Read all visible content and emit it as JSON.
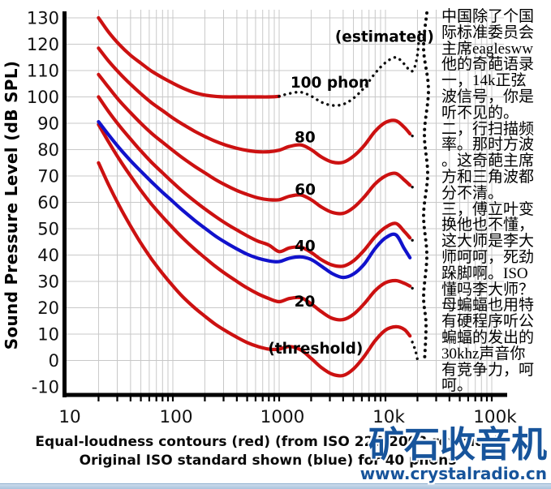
{
  "side_text": {
    "lines": [
      "中国除了个国",
      "际标准委员会",
      "主席eaglesww",
      "他的奇葩语录",
      "一，14k正弦",
      "波信号，你是",
      "听不见的。",
      "二，行扫描频",
      "率。那时方波",
      "。这奇葩主席",
      "方和三角波都",
      "分不清。",
      "三，傅立叶变",
      "换他也不懂，",
      "这大师是李大",
      "师呵呵，死劲",
      "跺脚啊。ISO",
      "懂吗李大师？",
      "母蝙蝠也用特",
      "有硬程序听公",
      "蝙蝠的发出的",
      "30khz声音你",
      "有竞争力，呵",
      "呵。"
    ]
  },
  "caption": {
    "line1": "Equal-loudness contours (red) (from ISO 226:2003 revision)",
    "line2": "Original ISO standard shown (blue) for 40 phons"
  },
  "watermark": {
    "brand": "矿石收音机",
    "url": "www.crystalradio.cn",
    "color": "#17549b"
  },
  "chart_data": {
    "type": "line",
    "title": "",
    "xlabel": "",
    "ylabel": "Sound Pressure Level (dB SPL)",
    "x_scale": "log",
    "xlim": [
      10,
      100000
    ],
    "ylim": [
      -10,
      130
    ],
    "grid": true,
    "colors": {
      "iso2003_red": "#cc1111",
      "original_blue": "#1112cc",
      "estimated_dotted": "#0d0d0d",
      "gridline": "#c8c8c8",
      "axis": "#000000"
    },
    "x_ticks": [
      {
        "f": 10,
        "label": "10"
      },
      {
        "f": 100,
        "label": "100"
      },
      {
        "f": 1000,
        "label": "1000"
      },
      {
        "f": 10000,
        "label": "10k"
      },
      {
        "f": 100000,
        "label": "100k"
      }
    ],
    "y_ticks": [
      130,
      120,
      110,
      100,
      90,
      80,
      70,
      60,
      50,
      40,
      30,
      20,
      10,
      0,
      -10
    ],
    "series": [
      {
        "name": "100-phon-solid",
        "color": "red",
        "style": "solid",
        "points": [
          [
            20,
            130
          ],
          [
            25,
            124.5
          ],
          [
            31.5,
            119.8
          ],
          [
            40,
            115.8
          ],
          [
            50,
            112.8
          ],
          [
            63,
            109.8
          ],
          [
            80,
            107.3
          ],
          [
            100,
            105.2
          ],
          [
            125,
            103.3
          ],
          [
            160,
            101.6
          ],
          [
            200,
            100.7
          ],
          [
            250,
            100.2
          ],
          [
            315,
            100
          ],
          [
            400,
            100
          ],
          [
            500,
            100
          ],
          [
            630,
            100
          ],
          [
            800,
            100
          ],
          [
            1000,
            100.2
          ]
        ]
      },
      {
        "name": "100-phon-estimated-dotted",
        "color": "black",
        "style": "dotted",
        "points": [
          [
            1000,
            100.2
          ],
          [
            1250,
            101.3
          ],
          [
            1600,
            101.8
          ],
          [
            2000,
            100.3
          ],
          [
            2500,
            98
          ],
          [
            3150,
            96.8
          ],
          [
            4000,
            97.2
          ],
          [
            5000,
            99.5
          ],
          [
            6300,
            103.5
          ],
          [
            8000,
            109
          ],
          [
            10000,
            113
          ],
          [
            12500,
            115
          ],
          [
            15000,
            112.5
          ],
          [
            17000,
            110
          ],
          [
            18500,
            110.5
          ],
          [
            20000,
            116
          ],
          [
            21000,
            126
          ]
        ]
      },
      {
        "name": "80-phon",
        "color": "red",
        "style": "solid",
        "points": [
          [
            20,
            118.5
          ],
          [
            25,
            113.5
          ],
          [
            31.5,
            109
          ],
          [
            40,
            104.8
          ],
          [
            50,
            101.2
          ],
          [
            63,
            97.8
          ],
          [
            80,
            94.8
          ],
          [
            100,
            92
          ],
          [
            125,
            89.5
          ],
          [
            160,
            87
          ],
          [
            200,
            85
          ],
          [
            250,
            83.2
          ],
          [
            315,
            81.7
          ],
          [
            400,
            80.5
          ],
          [
            500,
            79.7
          ],
          [
            630,
            79.2
          ],
          [
            800,
            79.2
          ],
          [
            1000,
            79.8
          ],
          [
            1250,
            81.2
          ],
          [
            1600,
            81.8
          ],
          [
            2000,
            80
          ],
          [
            2500,
            77.2
          ],
          [
            3150,
            75.3
          ],
          [
            4000,
            75.2
          ],
          [
            5000,
            77.5
          ],
          [
            6300,
            81.5
          ],
          [
            8000,
            87
          ],
          [
            10000,
            90.3
          ],
          [
            12500,
            91
          ],
          [
            15000,
            88.5
          ],
          [
            17000,
            86
          ]
        ]
      },
      {
        "name": "80-phon-hf-dots",
        "color": "black",
        "style": "dotted",
        "points": [
          [
            17900,
            85.2
          ],
          [
            19500,
            84.6
          ]
        ]
      },
      {
        "name": "60-phon",
        "color": "red",
        "style": "solid",
        "points": [
          [
            20,
            108.5
          ],
          [
            25,
            103.5
          ],
          [
            31.5,
            98.5
          ],
          [
            40,
            94
          ],
          [
            50,
            90
          ],
          [
            63,
            86.2
          ],
          [
            80,
            82.8
          ],
          [
            100,
            79.7
          ],
          [
            125,
            76.7
          ],
          [
            160,
            73.7
          ],
          [
            200,
            71.2
          ],
          [
            250,
            68.7
          ],
          [
            315,
            66.5
          ],
          [
            400,
            64.5
          ],
          [
            500,
            63
          ],
          [
            630,
            61.7
          ],
          [
            800,
            61
          ],
          [
            1000,
            61
          ],
          [
            1250,
            62.3
          ],
          [
            1600,
            62.8
          ],
          [
            2000,
            61
          ],
          [
            2500,
            58.2
          ],
          [
            3150,
            56.2
          ],
          [
            4000,
            55.8
          ],
          [
            5000,
            58
          ],
          [
            6300,
            62
          ],
          [
            8000,
            67
          ],
          [
            10000,
            70
          ],
          [
            12500,
            71
          ],
          [
            15000,
            68.5
          ],
          [
            17000,
            66.5
          ]
        ]
      },
      {
        "name": "60-phon-hf-dots",
        "color": "black",
        "style": "dotted",
        "points": [
          [
            17900,
            65.8
          ],
          [
            19500,
            65.4
          ]
        ]
      },
      {
        "name": "40-phon",
        "color": "red",
        "style": "solid",
        "points": [
          [
            20,
            100
          ],
          [
            25,
            94.3
          ],
          [
            31.5,
            89
          ],
          [
            40,
            84
          ],
          [
            50,
            79.5
          ],
          [
            63,
            75.2
          ],
          [
            80,
            71.2
          ],
          [
            100,
            67.5
          ],
          [
            125,
            64
          ],
          [
            160,
            60.5
          ],
          [
            200,
            57.5
          ],
          [
            250,
            54.7
          ],
          [
            315,
            52
          ],
          [
            400,
            49.5
          ],
          [
            500,
            47.3
          ],
          [
            630,
            45.3
          ],
          [
            800,
            43.8
          ],
          [
            1000,
            41.3
          ],
          [
            1250,
            42.7
          ],
          [
            1600,
            43
          ],
          [
            2000,
            41
          ],
          [
            2500,
            38.2
          ],
          [
            3150,
            36.2
          ],
          [
            4000,
            35.8
          ],
          [
            5000,
            37.8
          ],
          [
            6300,
            41.8
          ],
          [
            8000,
            47
          ],
          [
            10000,
            50.5
          ],
          [
            12500,
            52
          ],
          [
            15000,
            49
          ],
          [
            17000,
            46.5
          ]
        ]
      },
      {
        "name": "40-phon-hf-dots",
        "color": "black",
        "style": "dotted",
        "points": [
          [
            17900,
            45.6
          ],
          [
            19500,
            45.2
          ]
        ]
      },
      {
        "name": "20-phon",
        "color": "red",
        "style": "solid",
        "points": [
          [
            20,
            89.5
          ],
          [
            25,
            82.8
          ],
          [
            31.5,
            76.2
          ],
          [
            40,
            70
          ],
          [
            50,
            64.5
          ],
          [
            63,
            59.3
          ],
          [
            80,
            54.5
          ],
          [
            100,
            50.3
          ],
          [
            125,
            46.3
          ],
          [
            160,
            42.3
          ],
          [
            200,
            39
          ],
          [
            250,
            35.8
          ],
          [
            315,
            32.8
          ],
          [
            400,
            30
          ],
          [
            500,
            27.5
          ],
          [
            630,
            25.3
          ],
          [
            800,
            23.5
          ],
          [
            1000,
            22.3
          ],
          [
            1250,
            23.5
          ],
          [
            1600,
            23.8
          ],
          [
            2000,
            21.5
          ],
          [
            2500,
            18.5
          ],
          [
            3150,
            16
          ],
          [
            4000,
            15.5
          ],
          [
            5000,
            17.5
          ],
          [
            6300,
            21.5
          ],
          [
            8000,
            26.5
          ],
          [
            10000,
            29.5
          ],
          [
            12500,
            30.3
          ],
          [
            15000,
            29.3
          ],
          [
            17000,
            28.2
          ]
        ]
      },
      {
        "name": "20-phon-hf-dots",
        "color": "black",
        "style": "dotted",
        "points": [
          [
            17900,
            27.4
          ],
          [
            19300,
            26.6
          ]
        ]
      },
      {
        "name": "threshold",
        "color": "red",
        "style": "solid",
        "points": [
          [
            20,
            75
          ],
          [
            25,
            66.5
          ],
          [
            31.5,
            58.5
          ],
          [
            40,
            51
          ],
          [
            50,
            44.5
          ],
          [
            63,
            38.5
          ],
          [
            80,
            33
          ],
          [
            100,
            28.3
          ],
          [
            125,
            24
          ],
          [
            160,
            20
          ],
          [
            200,
            16.8
          ],
          [
            250,
            13.8
          ],
          [
            315,
            11.2
          ],
          [
            400,
            8.8
          ],
          [
            500,
            6.8
          ],
          [
            630,
            5.3
          ],
          [
            800,
            4.3
          ],
          [
            1000,
            4.3
          ],
          [
            1250,
            5.3
          ],
          [
            1600,
            4
          ],
          [
            2000,
            0.8
          ],
          [
            2500,
            -2.7
          ],
          [
            3150,
            -5.2
          ],
          [
            4000,
            -5.7
          ],
          [
            5000,
            -3.2
          ],
          [
            6300,
            1.5
          ],
          [
            8000,
            7.5
          ],
          [
            10000,
            11.5
          ],
          [
            12500,
            12.8
          ],
          [
            15000,
            11.8
          ],
          [
            17000,
            9.3
          ]
        ]
      },
      {
        "name": "threshold-estimated-dotted",
        "color": "black",
        "style": "dotted",
        "points": [
          [
            17900,
            7
          ],
          [
            19200,
            3.5
          ],
          [
            20200,
            -0.5
          ]
        ]
      },
      {
        "name": "original-iso-40-phon-blue",
        "color": "blue",
        "style": "solid",
        "points": [
          [
            20,
            90.6
          ],
          [
            25,
            85.5
          ],
          [
            31.5,
            80.5
          ],
          [
            40,
            75.8
          ],
          [
            50,
            71.8
          ],
          [
            63,
            67.8
          ],
          [
            80,
            63.8
          ],
          [
            100,
            60.3
          ],
          [
            125,
            56.8
          ],
          [
            160,
            53.2
          ],
          [
            200,
            50.2
          ],
          [
            250,
            47.3
          ],
          [
            315,
            44.7
          ],
          [
            400,
            42.3
          ],
          [
            500,
            40.3
          ],
          [
            630,
            38.8
          ],
          [
            800,
            37.8
          ],
          [
            1000,
            37.5
          ],
          [
            1250,
            38.8
          ],
          [
            1600,
            39.3
          ],
          [
            2000,
            38.3
          ],
          [
            2500,
            35.8
          ],
          [
            3150,
            33
          ],
          [
            4000,
            31.5
          ],
          [
            5000,
            32.8
          ],
          [
            6300,
            36.5
          ],
          [
            8000,
            42.5
          ],
          [
            10000,
            46.5
          ],
          [
            12500,
            47.7
          ],
          [
            15000,
            42.5
          ],
          [
            17000,
            39
          ]
        ]
      },
      {
        "name": "hf-limit-dotted",
        "color": "black",
        "style": "dotted-heavy",
        "coords": "px",
        "points": [
          [
            526,
            16
          ],
          [
            522,
            60
          ],
          [
            528,
            110
          ],
          [
            523,
            165
          ],
          [
            527,
            215
          ],
          [
            522,
            265
          ],
          [
            526,
            315
          ],
          [
            522,
            365
          ],
          [
            525,
            400
          ],
          [
            523,
            447
          ]
        ]
      }
    ],
    "annotations": [
      {
        "text": "(estimated)",
        "f": 9800,
        "spl": 123
      },
      {
        "text": "100 phon",
        "f": 3000,
        "spl": 105.6
      },
      {
        "text": "80",
        "f": 1750,
        "spl": 84.8
      },
      {
        "text": "60",
        "f": 1760,
        "spl": 64.9
      },
      {
        "text": "40",
        "f": 1750,
        "spl": 43.6
      },
      {
        "text": "20",
        "f": 1740,
        "spl": 22.4
      },
      {
        "text": "(threshold)",
        "f": 2200,
        "spl": 4.6
      }
    ]
  }
}
